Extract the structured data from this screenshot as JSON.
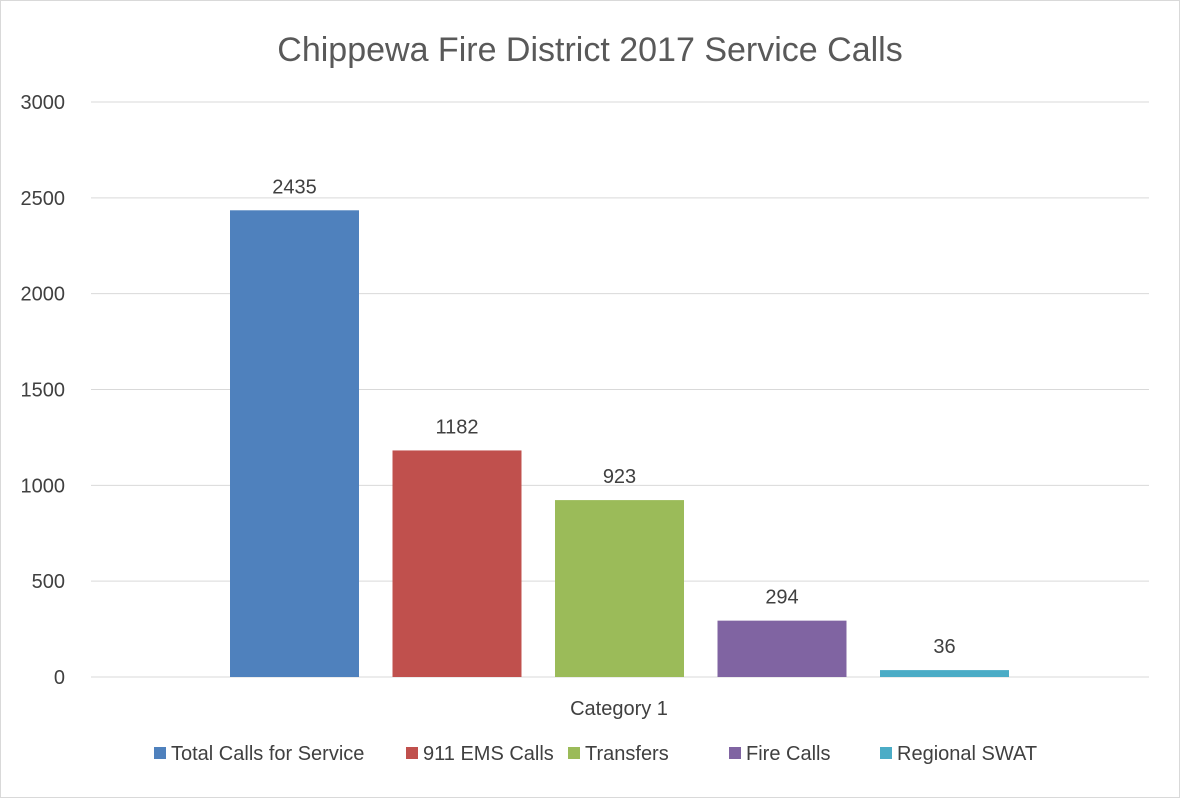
{
  "chart_data": {
    "type": "bar",
    "title": "Chippewa Fire District 2017 Service Calls",
    "categories": [
      "Category 1"
    ],
    "series": [
      {
        "name": "Total Calls for Service",
        "values": [
          2435
        ],
        "color": "#4f81bd"
      },
      {
        "name": "911 EMS Calls",
        "values": [
          1182
        ],
        "color": "#c0504d"
      },
      {
        "name": "Transfers",
        "values": [
          923
        ],
        "color": "#9bbb59"
      },
      {
        "name": "Fire Calls",
        "values": [
          294
        ],
        "color": "#8064a2"
      },
      {
        "name": "Regional SWAT",
        "values": [
          36
        ],
        "color": "#4bacc6"
      }
    ],
    "ylim": [
      0,
      3000
    ],
    "yticks": [
      0,
      500,
      1000,
      1500,
      2000,
      2500,
      3000
    ],
    "grid": true,
    "legend": "bottom",
    "data_labels": true
  }
}
